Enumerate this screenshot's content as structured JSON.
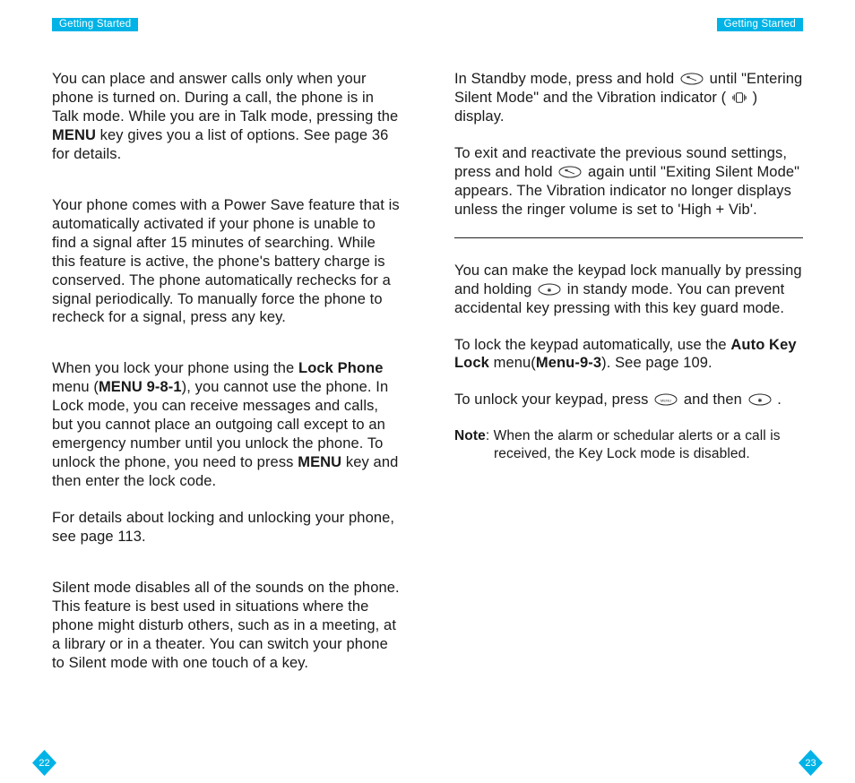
{
  "colors": {
    "accent": "#00b3e6",
    "text": "#1a1a1a",
    "background": "#ffffff",
    "icon_stroke": "#2a2a2a"
  },
  "typography": {
    "body_fontsize_pt": 12,
    "tab_fontsize_pt": 9,
    "line_height": 1.27,
    "font_family": "Helvetica"
  },
  "left": {
    "tab": "Getting Started",
    "page_number": "22",
    "sections": [
      {
        "paragraphs": [
          {
            "runs": [
              {
                "t": "You can place and answer calls only when your phone is turned on. During a call, the phone is in Talk mode. While you are in Talk mode, pressing the "
              },
              {
                "t": "MENU",
                "bold": true
              },
              {
                "t": " key gives you a list of options. See page 36 for details."
              }
            ]
          }
        ]
      },
      {
        "gap": true,
        "paragraphs": [
          {
            "runs": [
              {
                "t": "Your phone comes with a Power Save feature that is automatically activated if your phone is unable to find a signal after 15 minutes of searching. While this feature is active, the phone's battery charge is conserved. The phone automatically rechecks for a signal periodically. To manually force the phone to recheck for a signal, press any key."
              }
            ]
          }
        ]
      },
      {
        "gap": true,
        "paragraphs": [
          {
            "runs": [
              {
                "t": "When you lock your phone using the "
              },
              {
                "t": "Lock Phone",
                "bold": true
              },
              {
                "t": " menu ("
              },
              {
                "t": "MENU 9-8-1",
                "bold": true
              },
              {
                "t": "), you cannot use the phone. In Lock mode, you can receive messages and calls, but you cannot place an outgoing call except to an emergency number until you unlock the phone. To unlock the phone, you need to press "
              },
              {
                "t": "MENU",
                "bold": true
              },
              {
                "t": " key and then enter the lock code."
              }
            ]
          },
          {
            "runs": [
              {
                "t": "For details about locking and unlocking your phone, see page 113."
              }
            ]
          }
        ]
      },
      {
        "gap": true,
        "paragraphs": [
          {
            "runs": [
              {
                "t": "Silent mode disables all of the sounds on the phone. This feature is best used in situations where the phone might disturb others, such as in a meeting, at a library or in a theater. You can switch your phone to Silent mode with one touch of a key."
              }
            ]
          }
        ]
      }
    ]
  },
  "right": {
    "tab": "Getting Started",
    "page_number": "23",
    "sections": [
      {
        "paragraphs": [
          {
            "runs": [
              {
                "t": "In Standby mode, press and hold "
              },
              {
                "icon": "oval-key"
              },
              {
                "t": " until \"Entering Silent Mode\" and the Vibration indicator ( "
              },
              {
                "icon": "vibration"
              },
              {
                "t": " ) display."
              }
            ]
          },
          {
            "runs": [
              {
                "t": "To exit and reactivate the previous sound settings, press and hold "
              },
              {
                "icon": "oval-key"
              },
              {
                "t": " again until \"Exiting Silent Mode\" appears. The Vibration indicator no longer displays unless the ringer volume is set to 'High + Vib'."
              }
            ]
          }
        ]
      },
      {
        "separator": true
      },
      {
        "paragraphs": [
          {
            "runs": [
              {
                "t": "You can make the keypad lock manually by pressing and holding "
              },
              {
                "icon": "oval-key-star"
              },
              {
                "t": " in standy mode. You can prevent accidental key pressing with this key guard mode."
              }
            ]
          },
          {
            "runs": [
              {
                "t": "To lock the keypad automatically, use the "
              },
              {
                "t": "Auto Key Lock",
                "bold": true
              },
              {
                "t": " menu("
              },
              {
                "t": "Menu-9-3",
                "bold": true
              },
              {
                "t": "). See page 109."
              }
            ]
          },
          {
            "runs": [
              {
                "t": "To unlock your keypad, press  "
              },
              {
                "icon": "oval-key-menu"
              },
              {
                "t": "  and then  "
              },
              {
                "icon": "oval-key-star"
              },
              {
                "t": " ."
              }
            ]
          }
        ]
      },
      {
        "note": {
          "label": "Note",
          "text": ": When the alarm or schedular alerts or a call is received, the Key Lock mode is disabled."
        }
      }
    ]
  }
}
